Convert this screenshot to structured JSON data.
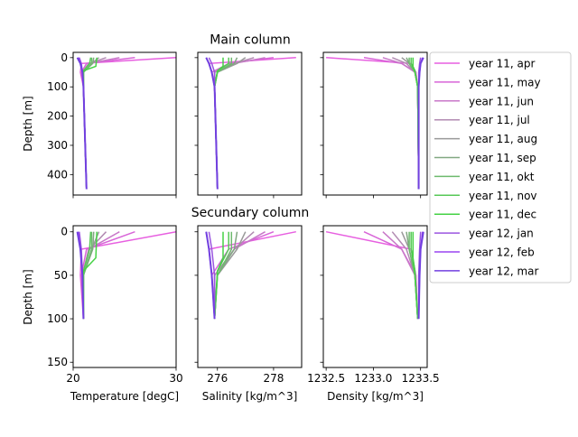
{
  "figure": {
    "row_titles": [
      "Main column",
      "Secundary column"
    ],
    "depth_label": "Depth [m]"
  },
  "chart_data": [
    {
      "type": "line",
      "panel": "main-temperature",
      "title": "",
      "xlabel": "",
      "ylabel": "Depth [m]",
      "xlim": [
        20,
        30
      ],
      "ylim": [
        470,
        -18
      ],
      "xticks": [
        20,
        30
      ],
      "yticks": [
        0,
        100,
        200,
        300,
        400
      ],
      "show_xticklabels": false,
      "show_yticklabels": true
    },
    {
      "type": "line",
      "panel": "main-salinity",
      "title": "Main column",
      "xlabel": "",
      "ylabel": "",
      "xlim": [
        275.3,
        279.0
      ],
      "ylim": [
        470,
        -18
      ],
      "xticks": [
        276,
        278
      ],
      "yticks": [
        0,
        100,
        200,
        300,
        400
      ],
      "show_xticklabels": false,
      "show_yticklabels": false
    },
    {
      "type": "line",
      "panel": "main-density",
      "title": "",
      "xlabel": "",
      "ylabel": "",
      "xlim": [
        1232.47,
        1233.57
      ],
      "ylim": [
        470,
        -18
      ],
      "xticks": [
        1232.5,
        1233.0,
        1233.5
      ],
      "yticks": [
        0,
        100,
        200,
        300,
        400
      ],
      "show_xticklabels": false,
      "show_yticklabels": false
    },
    {
      "type": "line",
      "panel": "secondary-temperature",
      "title": "",
      "xlabel": "Temperature [degC]",
      "ylabel": "Depth [m]",
      "xlim": [
        20,
        30
      ],
      "ylim": [
        156,
        -7
      ],
      "xticks": [
        20,
        30
      ],
      "xticklabels": [
        "20",
        "30"
      ],
      "yticks": [
        0,
        50,
        100,
        150
      ],
      "yticklabels": [
        "0",
        "50",
        "100",
        "150"
      ],
      "show_xticklabels": true,
      "show_yticklabels": true
    },
    {
      "type": "line",
      "panel": "secondary-salinity",
      "title": "Secundary column",
      "xlabel": "Salinity [kg/m^3]",
      "ylabel": "",
      "xlim": [
        275.3,
        279.0
      ],
      "ylim": [
        156,
        -7
      ],
      "xticks": [
        276,
        278
      ],
      "xticklabels": [
        "276",
        "278"
      ],
      "yticks": [
        0,
        50,
        100,
        150
      ],
      "show_xticklabels": true,
      "show_yticklabels": false
    },
    {
      "type": "line",
      "panel": "secondary-density",
      "title": "",
      "xlabel": "Density [kg/m^3]",
      "ylabel": "",
      "xlim": [
        1232.47,
        1233.57
      ],
      "ylim": [
        156,
        -7
      ],
      "xticks": [
        1232.5,
        1233.0,
        1233.5
      ],
      "xticklabels": [
        "1232.5",
        "1233.0",
        "1233.5"
      ],
      "yticks": [
        0,
        50,
        100,
        150
      ],
      "show_xticklabels": true,
      "show_yticklabels": false
    }
  ],
  "main_axes": {
    "ytick_labels": [
      "0",
      "100",
      "200",
      "300",
      "400"
    ]
  },
  "series": [
    {
      "name": "year 11, apr",
      "color": "#e75fe0",
      "depth": [
        0,
        20,
        50,
        100,
        450
      ],
      "temperature": [
        30.0,
        20.8,
        20.7,
        21.0,
        21.3
      ],
      "salinity": [
        278.8,
        275.7,
        275.8,
        275.9,
        276.0
      ],
      "density": [
        1232.5,
        1233.4,
        1233.45,
        1233.47,
        1233.48
      ]
    },
    {
      "name": "year 11, may",
      "color": "#d865d8",
      "depth": [
        0,
        20,
        50,
        100,
        450
      ],
      "temperature": [
        26.0,
        21.3,
        20.8,
        21.0,
        21.3
      ],
      "salinity": [
        278.0,
        276.4,
        275.8,
        275.9,
        276.0
      ],
      "density": [
        1232.9,
        1233.3,
        1233.45,
        1233.47,
        1233.48
      ]
    },
    {
      "name": "year 11, jun",
      "color": "#c877c8",
      "depth": [
        0,
        20,
        50,
        100,
        450
      ],
      "temperature": [
        24.5,
        21.5,
        20.9,
        21.0,
        21.3
      ],
      "salinity": [
        277.7,
        276.6,
        275.9,
        275.9,
        276.0
      ],
      "density": [
        1233.1,
        1233.3,
        1233.44,
        1233.47,
        1233.48
      ]
    },
    {
      "name": "year 11, jul",
      "color": "#b28bb2",
      "depth": [
        0,
        20,
        50,
        100,
        450
      ],
      "temperature": [
        23.2,
        21.6,
        20.9,
        21.0,
        21.3
      ],
      "salinity": [
        277.3,
        276.6,
        275.9,
        275.9,
        276.0
      ],
      "density": [
        1233.2,
        1233.35,
        1233.44,
        1233.47,
        1233.48
      ]
    },
    {
      "name": "year 11, aug",
      "color": "#999999",
      "depth": [
        0,
        20,
        50,
        100,
        450
      ],
      "temperature": [
        22.5,
        21.8,
        21.0,
        21.0,
        21.3
      ],
      "salinity": [
        277.0,
        276.7,
        276.0,
        275.9,
        276.0
      ],
      "density": [
        1233.3,
        1233.38,
        1233.44,
        1233.47,
        1233.48
      ]
    },
    {
      "name": "year 11, sep",
      "color": "#82a882",
      "depth": [
        0,
        20,
        50,
        100,
        450
      ],
      "temperature": [
        22.0,
        21.9,
        21.0,
        21.0,
        21.3
      ],
      "salinity": [
        276.7,
        276.6,
        276.0,
        275.9,
        276.0
      ],
      "density": [
        1233.35,
        1233.38,
        1233.44,
        1233.47,
        1233.48
      ]
    },
    {
      "name": "year 11, okt",
      "color": "#6dba6d",
      "depth": [
        0,
        20,
        50,
        100,
        450
      ],
      "temperature": [
        21.8,
        21.8,
        21.0,
        21.0,
        21.3
      ],
      "salinity": [
        276.5,
        276.5,
        276.0,
        275.9,
        276.0
      ],
      "density": [
        1233.38,
        1233.38,
        1233.44,
        1233.47,
        1233.48
      ]
    },
    {
      "name": "year 11, nov",
      "color": "#57c857",
      "depth": [
        0,
        20,
        45,
        100,
        450
      ],
      "temperature": [
        21.7,
        21.6,
        21.0,
        21.0,
        21.3
      ],
      "salinity": [
        276.4,
        276.4,
        276.0,
        275.9,
        276.0
      ],
      "density": [
        1233.4,
        1233.4,
        1233.44,
        1233.47,
        1233.48
      ]
    },
    {
      "name": "year 11, dec",
      "color": "#45d245",
      "depth": [
        0,
        30,
        45,
        100,
        450
      ],
      "temperature": [
        22.3,
        22.2,
        21.0,
        21.0,
        21.3
      ],
      "salinity": [
        276.2,
        276.2,
        276.0,
        275.9,
        276.0
      ],
      "density": [
        1233.42,
        1233.42,
        1233.44,
        1233.47,
        1233.48
      ]
    },
    {
      "name": "year 12, jan",
      "color": "#9b55e0",
      "depth": [
        0,
        20,
        50,
        100,
        450
      ],
      "temperature": [
        20.6,
        20.8,
        20.9,
        21.0,
        21.3
      ],
      "salinity": [
        275.7,
        275.8,
        275.9,
        275.9,
        276.0
      ],
      "density": [
        1233.5,
        1233.49,
        1233.48,
        1233.48,
        1233.48
      ]
    },
    {
      "name": "year 12, feb",
      "color": "#9a45f0",
      "depth": [
        0,
        20,
        50,
        100,
        450
      ],
      "temperature": [
        20.5,
        20.7,
        20.9,
        21.0,
        21.3
      ],
      "salinity": [
        275.6,
        275.7,
        275.8,
        275.9,
        276.0
      ],
      "density": [
        1233.52,
        1233.5,
        1233.49,
        1233.48,
        1233.48
      ]
    },
    {
      "name": "year 12, mar",
      "color": "#7240e0",
      "depth": [
        0,
        20,
        50,
        100,
        450
      ],
      "temperature": [
        20.4,
        20.7,
        20.9,
        21.0,
        21.3
      ],
      "salinity": [
        275.6,
        275.7,
        275.8,
        275.9,
        276.0
      ],
      "density": [
        1233.53,
        1233.5,
        1233.49,
        1233.48,
        1233.48
      ]
    }
  ],
  "legend": {
    "placement": "right"
  }
}
